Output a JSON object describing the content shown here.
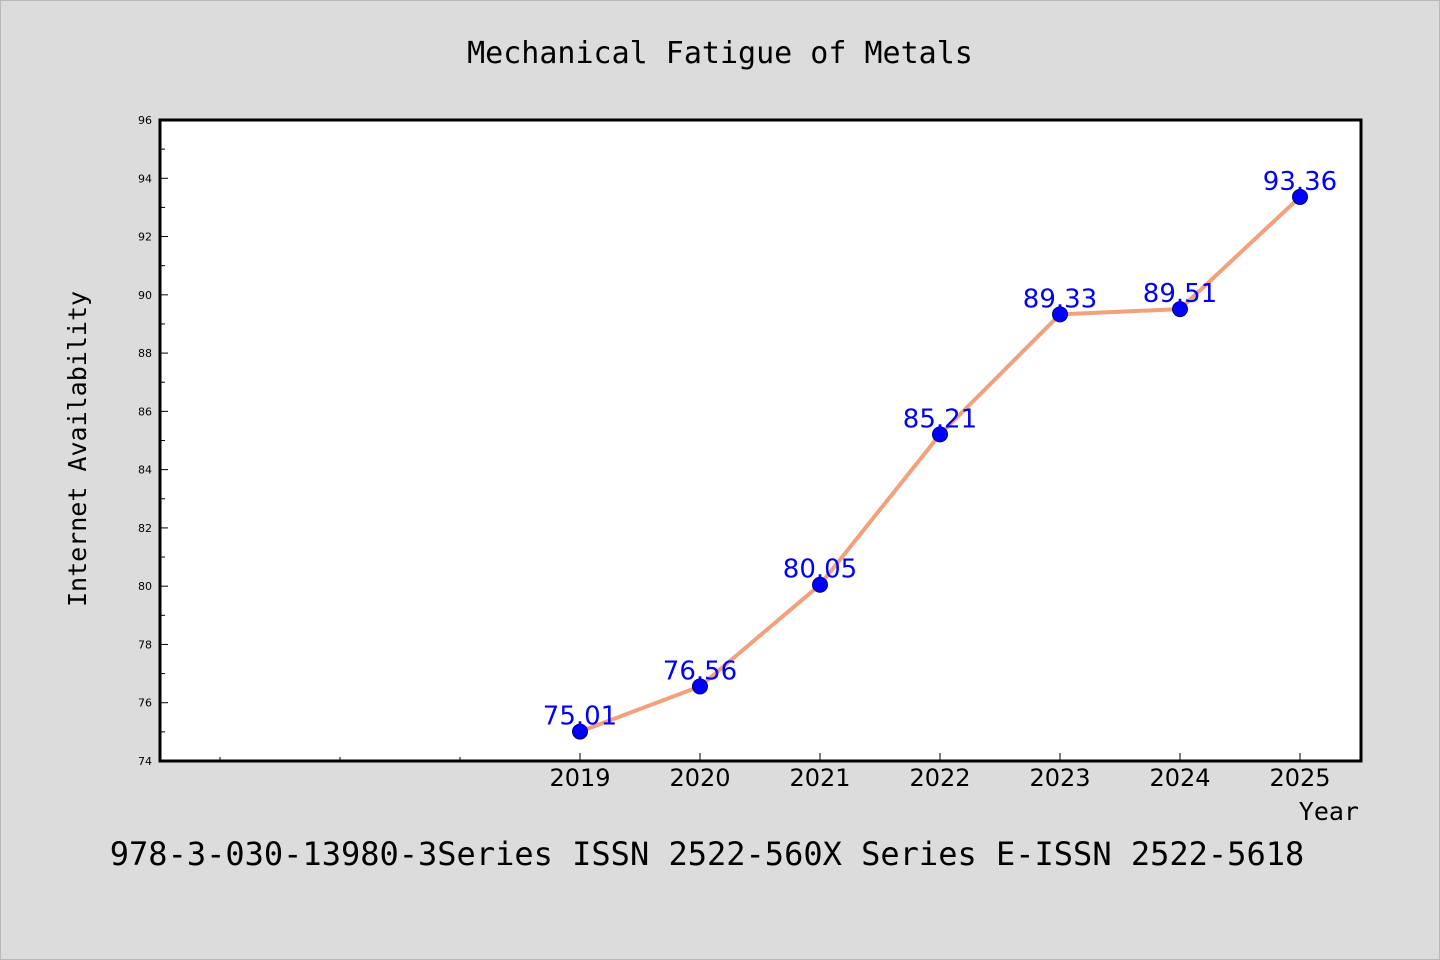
{
  "chart_data": {
    "type": "line",
    "title": "Mechanical Fatigue of Metals",
    "xlabel": "Year",
    "ylabel": "Internet Availability",
    "categories": [
      "2019",
      "2020",
      "2021",
      "2022",
      "2023",
      "2024",
      "2025"
    ],
    "series": [
      {
        "values": [
          75.01,
          76.56,
          80.05,
          85.21,
          89.33,
          89.51,
          93.36
        ],
        "labels": [
          "75.01",
          "76.56",
          "80.05",
          "85.21",
          "89.33",
          "89.51",
          "93.36"
        ],
        "line_color": "#f4a07a",
        "marker_color": "#0000ff"
      }
    ],
    "ylim": [
      74,
      96
    ],
    "yticks": [
      74,
      76,
      78,
      80,
      82,
      84,
      86,
      88,
      90,
      92,
      94,
      96
    ],
    "grid": false,
    "legend": "none"
  },
  "footer": "978-3-030-13980-3Series ISSN 2522-560X Series E-ISSN 2522-5618",
  "colors": {
    "background": "#dcdcdc",
    "plot_background": "#ffffff",
    "line": "#f4a07a",
    "marker": "#0000ff",
    "data_label": "#0000ff"
  }
}
